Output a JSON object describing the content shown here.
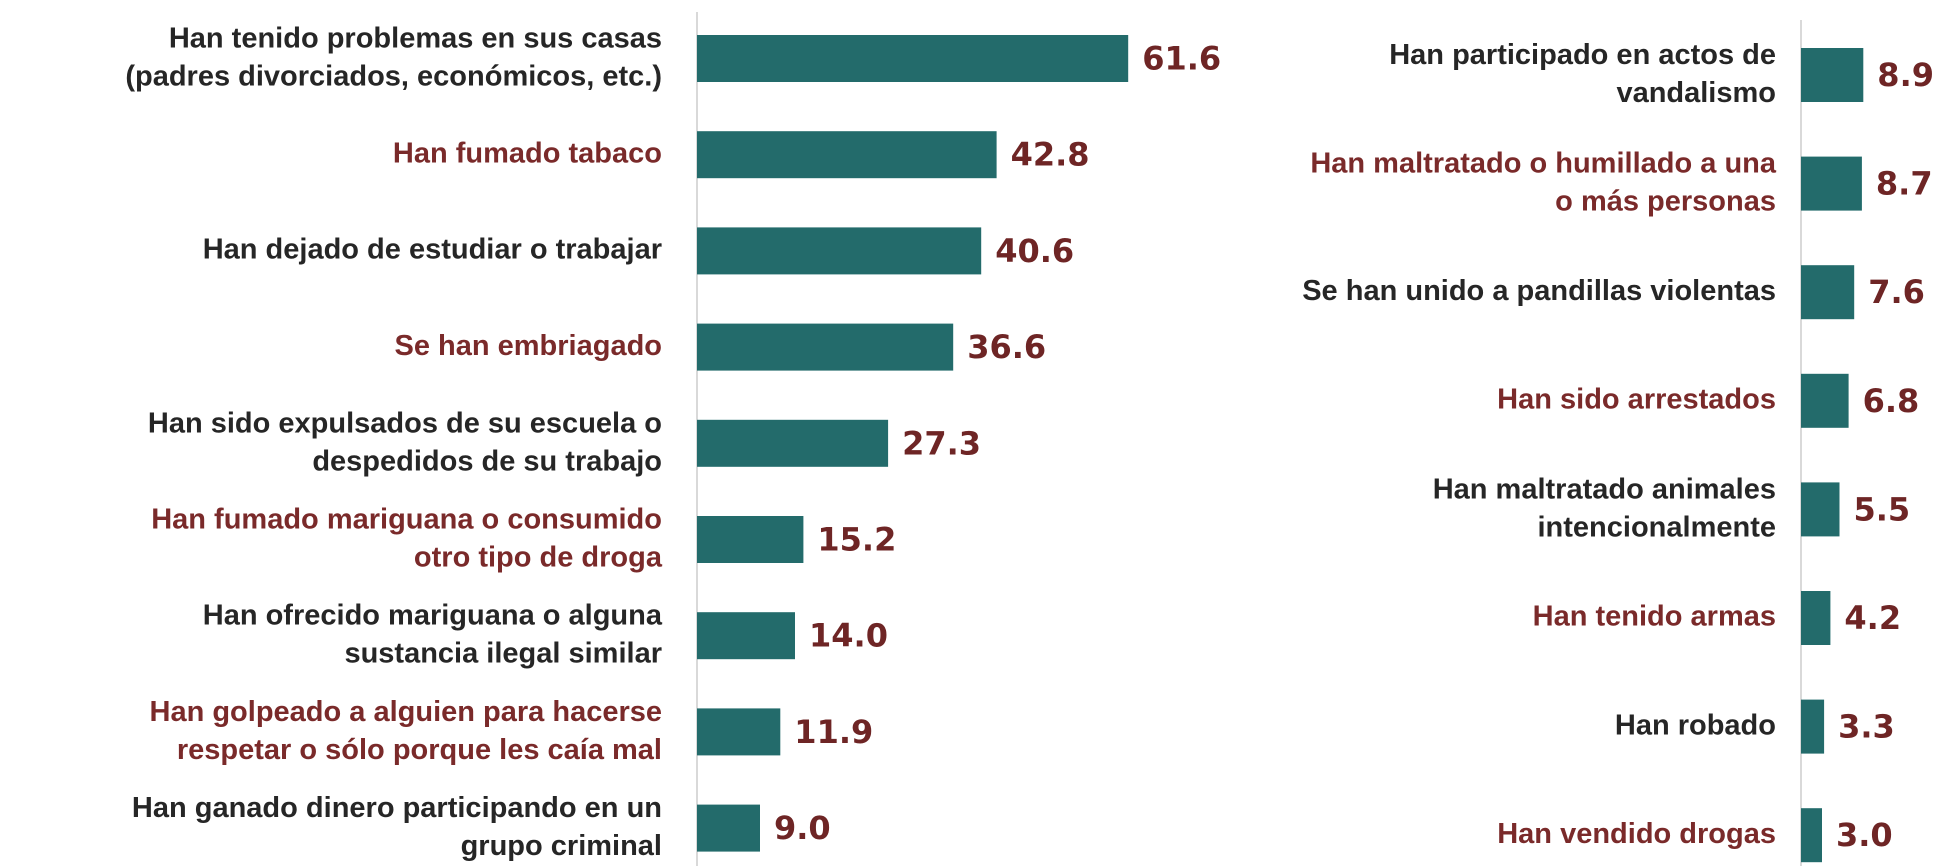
{
  "chart_data": [
    {
      "type": "barh",
      "categories": [
        "Han tenido problemas en sus casas\n(padres divorciados, económicos, etc.)",
        "Han fumado tabaco",
        "Han dejado de estudiar o trabajar",
        "Se han embriagado",
        "Han sido expulsados de su escuela o\ndespedidos de su trabajo",
        "Han fumado mariguana o consumido\notro tipo de droga",
        "Han ofrecido mariguana o alguna\nsustancia ilegal similar",
        "Han golpeado a alguien para hacerse\nrespetar o sólo porque les caía mal",
        "Han ganado dinero participando en un\ngrupo criminal"
      ],
      "values": [
        61.6,
        42.8,
        40.6,
        36.6,
        27.3,
        15.2,
        14.0,
        11.9,
        9.0
      ],
      "value_labels": [
        "61.6",
        "42.8",
        "40.6",
        "36.6",
        "27.3",
        "15.2",
        "14.0",
        "11.9",
        "9.0"
      ],
      "color": "#236b6b",
      "label_colors": [
        "#262626",
        "#7a2a2a"
      ],
      "value_label_color": "#6e2525",
      "xlim": [
        0,
        70
      ]
    },
    {
      "type": "barh",
      "categories": [
        "Han participado en actos de\nvandalismo",
        "Han maltratado o humillado a una\no más personas",
        "Se han unido a pandillas violentas",
        "Han sido arrestados",
        "Han maltratado animales\nintencionalmente",
        "Han tenido armas",
        "Han robado",
        "Han vendido drogas"
      ],
      "values": [
        8.9,
        8.7,
        7.6,
        6.8,
        5.5,
        4.2,
        3.3,
        3.0
      ],
      "value_labels": [
        "8.9",
        "8.7",
        "7.6",
        "6.8",
        "5.5",
        "4.2",
        "3.3",
        "3.0"
      ],
      "color": "#236b6b",
      "label_colors": [
        "#262626",
        "#7a2a2a"
      ],
      "value_label_color": "#6e2525",
      "xlim": [
        0,
        20
      ]
    }
  ]
}
